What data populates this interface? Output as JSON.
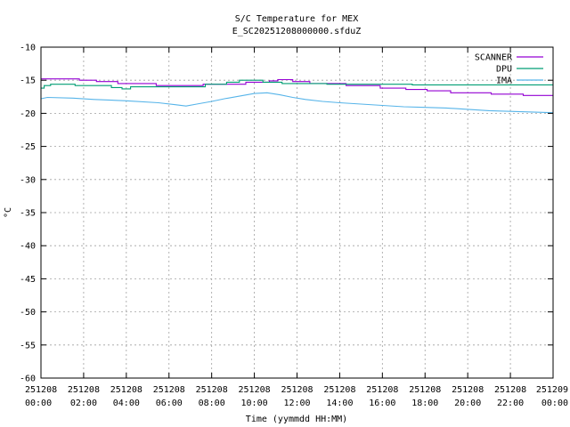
{
  "chart_data": {
    "type": "line",
    "title": "S/C Temperature for MEX",
    "subtitle": "E_SC20251208000000.sfduZ",
    "xlabel": "Time (yymmdd HH:MM)",
    "ylabel": "°C",
    "ylim": [
      -60,
      -10
    ],
    "xlim": [
      "251208 00:00",
      "251209 00:00"
    ],
    "y_ticks": [
      -10,
      -15,
      -20,
      -25,
      -30,
      -35,
      -40,
      -45,
      -50,
      -55,
      -60
    ],
    "x_tick_labels": [
      [
        "251208",
        "00:00"
      ],
      [
        "251208",
        "02:00"
      ],
      [
        "251208",
        "04:00"
      ],
      [
        "251208",
        "06:00"
      ],
      [
        "251208",
        "08:00"
      ],
      [
        "251208",
        "10:00"
      ],
      [
        "251208",
        "12:00"
      ],
      [
        "251208",
        "14:00"
      ],
      [
        "251208",
        "16:00"
      ],
      [
        "251208",
        "18:00"
      ],
      [
        "251208",
        "20:00"
      ],
      [
        "251208",
        "22:00"
      ],
      [
        "251209",
        "00:00"
      ]
    ],
    "grid": true,
    "legend_position": "top-right",
    "series": [
      {
        "name": "SCANNER",
        "color": "#9400d3",
        "x_hours": [
          0,
          1.8,
          1.8,
          2.6,
          2.6,
          3.6,
          3.6,
          5.4,
          5.4,
          7.6,
          7.6,
          9.6,
          9.6,
          10.7,
          10.7,
          11.1,
          11.1,
          11.8,
          11.8,
          12.6,
          12.6,
          14.3,
          14.3,
          15.9,
          15.9,
          17.1,
          17.1,
          18.1,
          18.1,
          19.2,
          19.2,
          21.1,
          21.1,
          22.6,
          22.6,
          24
        ],
        "y": [
          -14.8,
          -14.8,
          -15.0,
          -15.0,
          -15.2,
          -15.2,
          -15.5,
          -15.5,
          -15.8,
          -15.8,
          -15.6,
          -15.6,
          -15.3,
          -15.3,
          -15.1,
          -15.1,
          -14.9,
          -14.9,
          -15.2,
          -15.2,
          -15.5,
          -15.5,
          -15.8,
          -15.8,
          -16.2,
          -16.2,
          -16.4,
          -16.4,
          -16.6,
          -16.6,
          -16.9,
          -16.9,
          -17.1,
          -17.1,
          -17.3,
          -17.3
        ]
      },
      {
        "name": "DPU",
        "color": "#009e73",
        "x_hours": [
          0,
          0.15,
          0.15,
          0.45,
          0.45,
          1.6,
          1.6,
          3.3,
          3.3,
          3.8,
          3.8,
          4.2,
          4.2,
          7.7,
          7.7,
          8.7,
          8.7,
          9.3,
          9.3,
          10.4,
          10.4,
          11.3,
          11.3,
          13.4,
          13.4,
          17.4,
          17.4,
          24
        ],
        "y": [
          -16.2,
          -16.2,
          -15.8,
          -15.8,
          -15.6,
          -15.6,
          -15.8,
          -15.8,
          -16.1,
          -16.1,
          -16.3,
          -16.3,
          -16.0,
          -16.0,
          -15.6,
          -15.6,
          -15.3,
          -15.3,
          -15.0,
          -15.0,
          -15.3,
          -15.3,
          -15.5,
          -15.5,
          -15.6,
          -15.6,
          -15.7,
          -15.7
        ]
      },
      {
        "name": "IMA",
        "color": "#56b4e9",
        "x_hours": [
          0,
          0.3,
          1.5,
          2.5,
          4.0,
          5.5,
          6.3,
          6.8,
          7.3,
          8.0,
          8.6,
          9.3,
          10.0,
          10.6,
          11.2,
          11.8,
          12.4,
          13.2,
          14.0,
          15.0,
          16.0,
          17.0,
          18.0,
          19.0,
          20.0,
          21.0,
          22.0,
          23.0,
          24.0
        ],
        "y": [
          -17.8,
          -17.6,
          -17.7,
          -17.9,
          -18.1,
          -18.4,
          -18.7,
          -18.9,
          -18.6,
          -18.2,
          -17.8,
          -17.4,
          -17.0,
          -16.9,
          -17.2,
          -17.6,
          -17.9,
          -18.2,
          -18.4,
          -18.6,
          -18.8,
          -19.0,
          -19.1,
          -19.2,
          -19.4,
          -19.6,
          -19.7,
          -19.8,
          -19.9
        ]
      }
    ]
  }
}
